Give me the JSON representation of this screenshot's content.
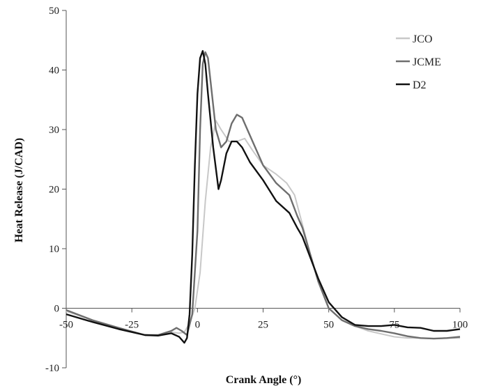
{
  "chart_data": {
    "type": "line",
    "xlabel": "Crank Angle (°)",
    "ylabel": "Heat Release (J/CAD)",
    "xlim": [
      -50,
      100
    ],
    "ylim": [
      -10,
      50
    ],
    "x_ticks": [
      -50,
      -25,
      0,
      25,
      50,
      75,
      100
    ],
    "y_ticks": [
      -10,
      0,
      10,
      20,
      30,
      40,
      50
    ],
    "x_tick_labels": [
      "-50",
      "-25",
      "0",
      "25",
      "50",
      "75",
      "100"
    ],
    "y_tick_labels": [
      "-10",
      "0",
      "10",
      "20",
      "30",
      "40",
      "50"
    ],
    "grid": false,
    "legend_position": "top-right",
    "series": [
      {
        "name": "JCO",
        "color": "#c8c8c8",
        "points": [
          [
            -50,
            -0.5
          ],
          [
            -40,
            -2
          ],
          [
            -30,
            -3.5
          ],
          [
            -20,
            -4.5
          ],
          [
            -15,
            -4.5
          ],
          [
            -10,
            -4
          ],
          [
            -7,
            -4.2
          ],
          [
            -5,
            -4
          ],
          [
            -3,
            -2.5
          ],
          [
            -1,
            0
          ],
          [
            1,
            6
          ],
          [
            3,
            18
          ],
          [
            5,
            27
          ],
          [
            7,
            31.5
          ],
          [
            9,
            30
          ],
          [
            12,
            28
          ],
          [
            15,
            28
          ],
          [
            18,
            28.5
          ],
          [
            21,
            26.5
          ],
          [
            25,
            24
          ],
          [
            30,
            22.5
          ],
          [
            34,
            21
          ],
          [
            37,
            19
          ],
          [
            40,
            14
          ],
          [
            43,
            9
          ],
          [
            46,
            4.5
          ],
          [
            50,
            0
          ],
          [
            55,
            -2
          ],
          [
            60,
            -3
          ],
          [
            65,
            -3.8
          ],
          [
            70,
            -4.3
          ],
          [
            75,
            -4.8
          ],
          [
            80,
            -5
          ],
          [
            85,
            -5
          ],
          [
            90,
            -5.1
          ],
          [
            95,
            -5
          ],
          [
            100,
            -5
          ]
        ]
      },
      {
        "name": "JCME",
        "color": "#6e6e6e",
        "points": [
          [
            -50,
            -0.3
          ],
          [
            -40,
            -2
          ],
          [
            -30,
            -3.3
          ],
          [
            -20,
            -4.5
          ],
          [
            -15,
            -4.5
          ],
          [
            -10,
            -3.8
          ],
          [
            -8,
            -3.3
          ],
          [
            -6,
            -3.8
          ],
          [
            -4,
            -4.5
          ],
          [
            -2,
            -1
          ],
          [
            0,
            13
          ],
          [
            1,
            30
          ],
          [
            2,
            41
          ],
          [
            3,
            43
          ],
          [
            4,
            42
          ],
          [
            5,
            38
          ],
          [
            7,
            30
          ],
          [
            9,
            27
          ],
          [
            11,
            28
          ],
          [
            13,
            31
          ],
          [
            15,
            32.5
          ],
          [
            17,
            32
          ],
          [
            19,
            30
          ],
          [
            22,
            27
          ],
          [
            25,
            24
          ],
          [
            30,
            21
          ],
          [
            35,
            19
          ],
          [
            38,
            15.5
          ],
          [
            40,
            13.5
          ],
          [
            43,
            9
          ],
          [
            46,
            4.5
          ],
          [
            50,
            0
          ],
          [
            55,
            -2
          ],
          [
            60,
            -3
          ],
          [
            65,
            -3.5
          ],
          [
            70,
            -3.8
          ],
          [
            75,
            -4.2
          ],
          [
            80,
            -4.7
          ],
          [
            85,
            -5
          ],
          [
            90,
            -5.1
          ],
          [
            95,
            -5
          ],
          [
            100,
            -4.8
          ]
        ]
      },
      {
        "name": "D2",
        "color": "#111111",
        "points": [
          [
            -50,
            -1
          ],
          [
            -40,
            -2.3
          ],
          [
            -30,
            -3.5
          ],
          [
            -20,
            -4.5
          ],
          [
            -15,
            -4.6
          ],
          [
            -10,
            -4.2
          ],
          [
            -7,
            -4.8
          ],
          [
            -5,
            -5.8
          ],
          [
            -4,
            -5
          ],
          [
            -3,
            -1
          ],
          [
            -2,
            9
          ],
          [
            -1,
            24
          ],
          [
            0,
            36
          ],
          [
            1,
            42
          ],
          [
            2,
            43.2
          ],
          [
            3,
            41
          ],
          [
            4,
            36
          ],
          [
            6,
            27
          ],
          [
            8,
            20
          ],
          [
            9,
            21.5
          ],
          [
            11,
            26
          ],
          [
            13,
            28
          ],
          [
            15,
            28
          ],
          [
            17,
            27
          ],
          [
            20,
            24.5
          ],
          [
            25,
            21.5
          ],
          [
            30,
            18
          ],
          [
            35,
            16
          ],
          [
            38,
            13.5
          ],
          [
            40,
            12
          ],
          [
            43,
            8.5
          ],
          [
            46,
            5
          ],
          [
            50,
            1
          ],
          [
            55,
            -1.5
          ],
          [
            60,
            -2.8
          ],
          [
            65,
            -3
          ],
          [
            70,
            -3
          ],
          [
            75,
            -2.8
          ],
          [
            80,
            -3.2
          ],
          [
            85,
            -3.3
          ],
          [
            90,
            -3.8
          ],
          [
            95,
            -3.8
          ],
          [
            100,
            -3.5
          ]
        ]
      }
    ]
  }
}
